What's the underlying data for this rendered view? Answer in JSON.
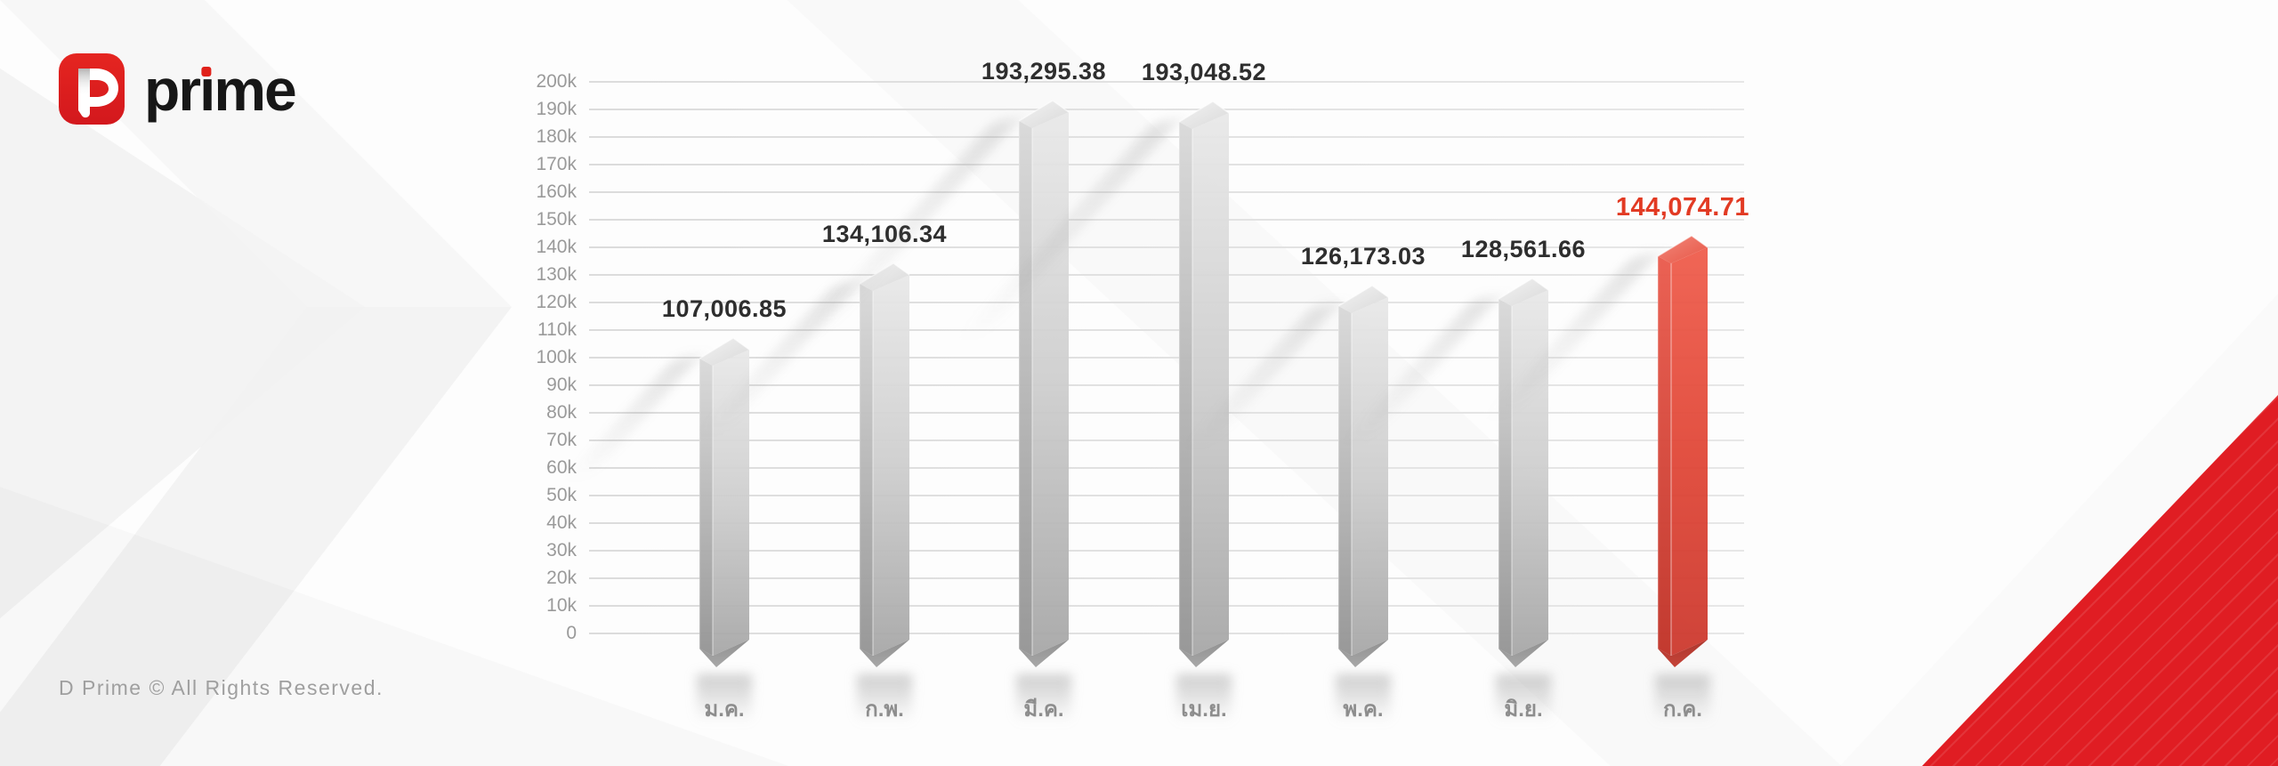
{
  "logo": {
    "brand": "prime",
    "mark": "d-prime-logo"
  },
  "footer": {
    "text": "D Prime © All Rights Reserved."
  },
  "colors": {
    "brand_red": "#e0211a",
    "highlight_bar": "#e2432f",
    "highlight_text": "#e23a23",
    "value_text": "#2e2e2e",
    "axis_text": "#9a9a9a",
    "category_text": "#8d8d8d",
    "gridline": "#e0e0e0",
    "corner_red": "#e01d23"
  },
  "chart_data": {
    "type": "bar",
    "title": "",
    "xlabel": "",
    "ylabel": "",
    "categories": [
      "ม.ค.",
      "ก.พ.",
      "มี.ค.",
      "เม.ย.",
      "พ.ค.",
      "มิ.ย.",
      "ก.ค."
    ],
    "values": [
      107006.85,
      134106.34,
      193295.38,
      193048.52,
      126173.03,
      128561.66,
      144074.71
    ],
    "value_labels": [
      "107,006.85",
      "134,106.34",
      "193,295.38",
      "193,048.52",
      "126,173.03",
      "128,561.66",
      "144,074.71"
    ],
    "highlight_index": 6,
    "ylim": [
      0,
      200000
    ],
    "y_tick_step": 10000,
    "y_tick_labels": [
      "0",
      "10k",
      "20k",
      "30k",
      "40k",
      "50k",
      "60k",
      "70k",
      "80k",
      "90k",
      "100k",
      "110k",
      "120k",
      "130k",
      "140k",
      "150k",
      "160k",
      "170k",
      "180k",
      "190k",
      "200k"
    ],
    "grid": true,
    "legend": false,
    "bar_style": "3d-column",
    "bar_color_normal": "#c9c9c9",
    "bar_color_highlight": "#e2432f"
  }
}
